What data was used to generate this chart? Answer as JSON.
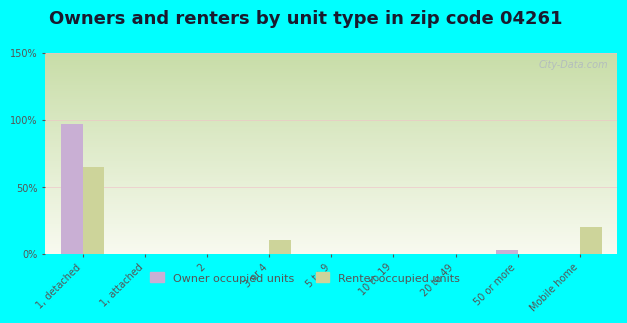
{
  "title": "Owners and renters by unit type in zip code 04261",
  "categories": [
    "1, detached",
    "1, attached",
    "2",
    "3 or 4",
    "5 to 9",
    "10 to 19",
    "20 to 49",
    "50 or more",
    "Mobile home"
  ],
  "owner_values": [
    97,
    0,
    0,
    0,
    0,
    0,
    0,
    3,
    0
  ],
  "renter_values": [
    65,
    0,
    0,
    10,
    0,
    0,
    0,
    0,
    20
  ],
  "owner_color": "#c9afd4",
  "renter_color": "#cdd49a",
  "background_color": "#00ffff",
  "grad_top": "#c8dda8",
  "grad_bottom": "#f8faf0",
  "ylim": [
    0,
    150
  ],
  "yticks": [
    0,
    50,
    100,
    150
  ],
  "ytick_labels": [
    "0%",
    "50%",
    "100%",
    "150%"
  ],
  "bar_width": 0.35,
  "watermark": "City-Data.com",
  "legend_owner": "Owner occupied units",
  "legend_renter": "Renter occupied units",
  "title_fontsize": 13,
  "tick_fontsize": 7,
  "tick_color": "#555555"
}
